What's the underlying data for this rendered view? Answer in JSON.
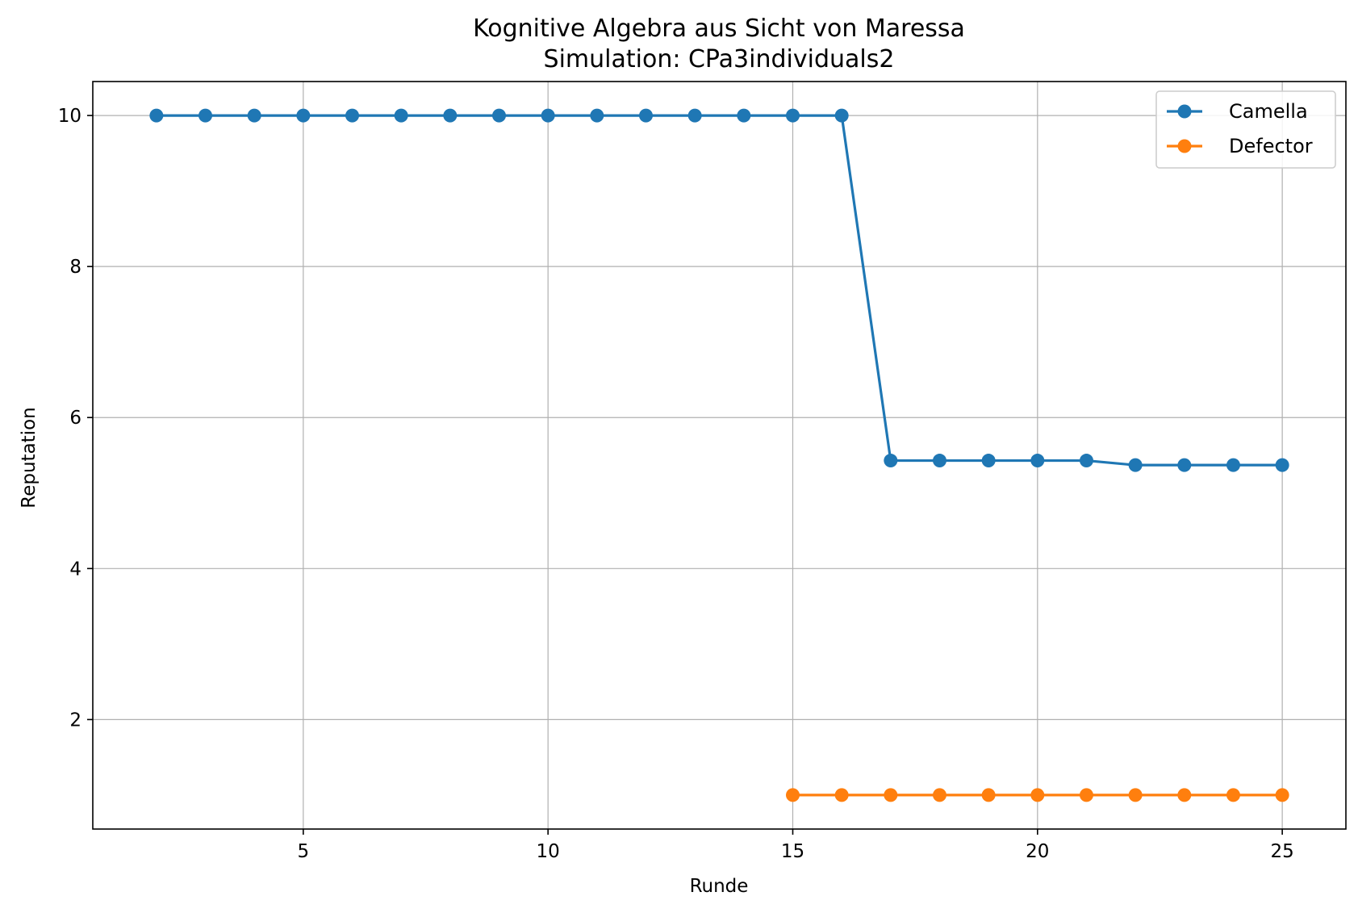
{
  "chart_data": {
    "type": "line",
    "title": "Kognitive Algebra aus Sicht von Maressa",
    "subtitle": "Simulation: CPa3individuals2",
    "xlabel": "Runde",
    "ylabel": "Reputation",
    "xlim": [
      0.7,
      26.3
    ],
    "ylim": [
      0.55,
      10.45
    ],
    "xticks": [
      5,
      10,
      15,
      20,
      25
    ],
    "yticks": [
      2,
      4,
      6,
      8,
      10
    ],
    "grid": true,
    "legend_position": "top-right",
    "series": [
      {
        "name": "Camella",
        "color": "#1f77b4",
        "x": [
          2,
          3,
          4,
          5,
          6,
          7,
          8,
          9,
          10,
          11,
          12,
          13,
          14,
          15,
          16,
          17,
          18,
          19,
          20,
          21,
          22,
          23,
          24,
          25
        ],
        "y": [
          10,
          10,
          10,
          10,
          10,
          10,
          10,
          10,
          10,
          10,
          10,
          10,
          10,
          10,
          10,
          5.43,
          5.43,
          5.43,
          5.43,
          5.43,
          5.37,
          5.37,
          5.37,
          5.37
        ]
      },
      {
        "name": "Defector",
        "color": "#ff7f0e",
        "x": [
          15,
          16,
          17,
          18,
          19,
          20,
          21,
          22,
          23,
          24,
          25
        ],
        "y": [
          1,
          1,
          1,
          1,
          1,
          1,
          1,
          1,
          1,
          1,
          1
        ]
      }
    ]
  }
}
